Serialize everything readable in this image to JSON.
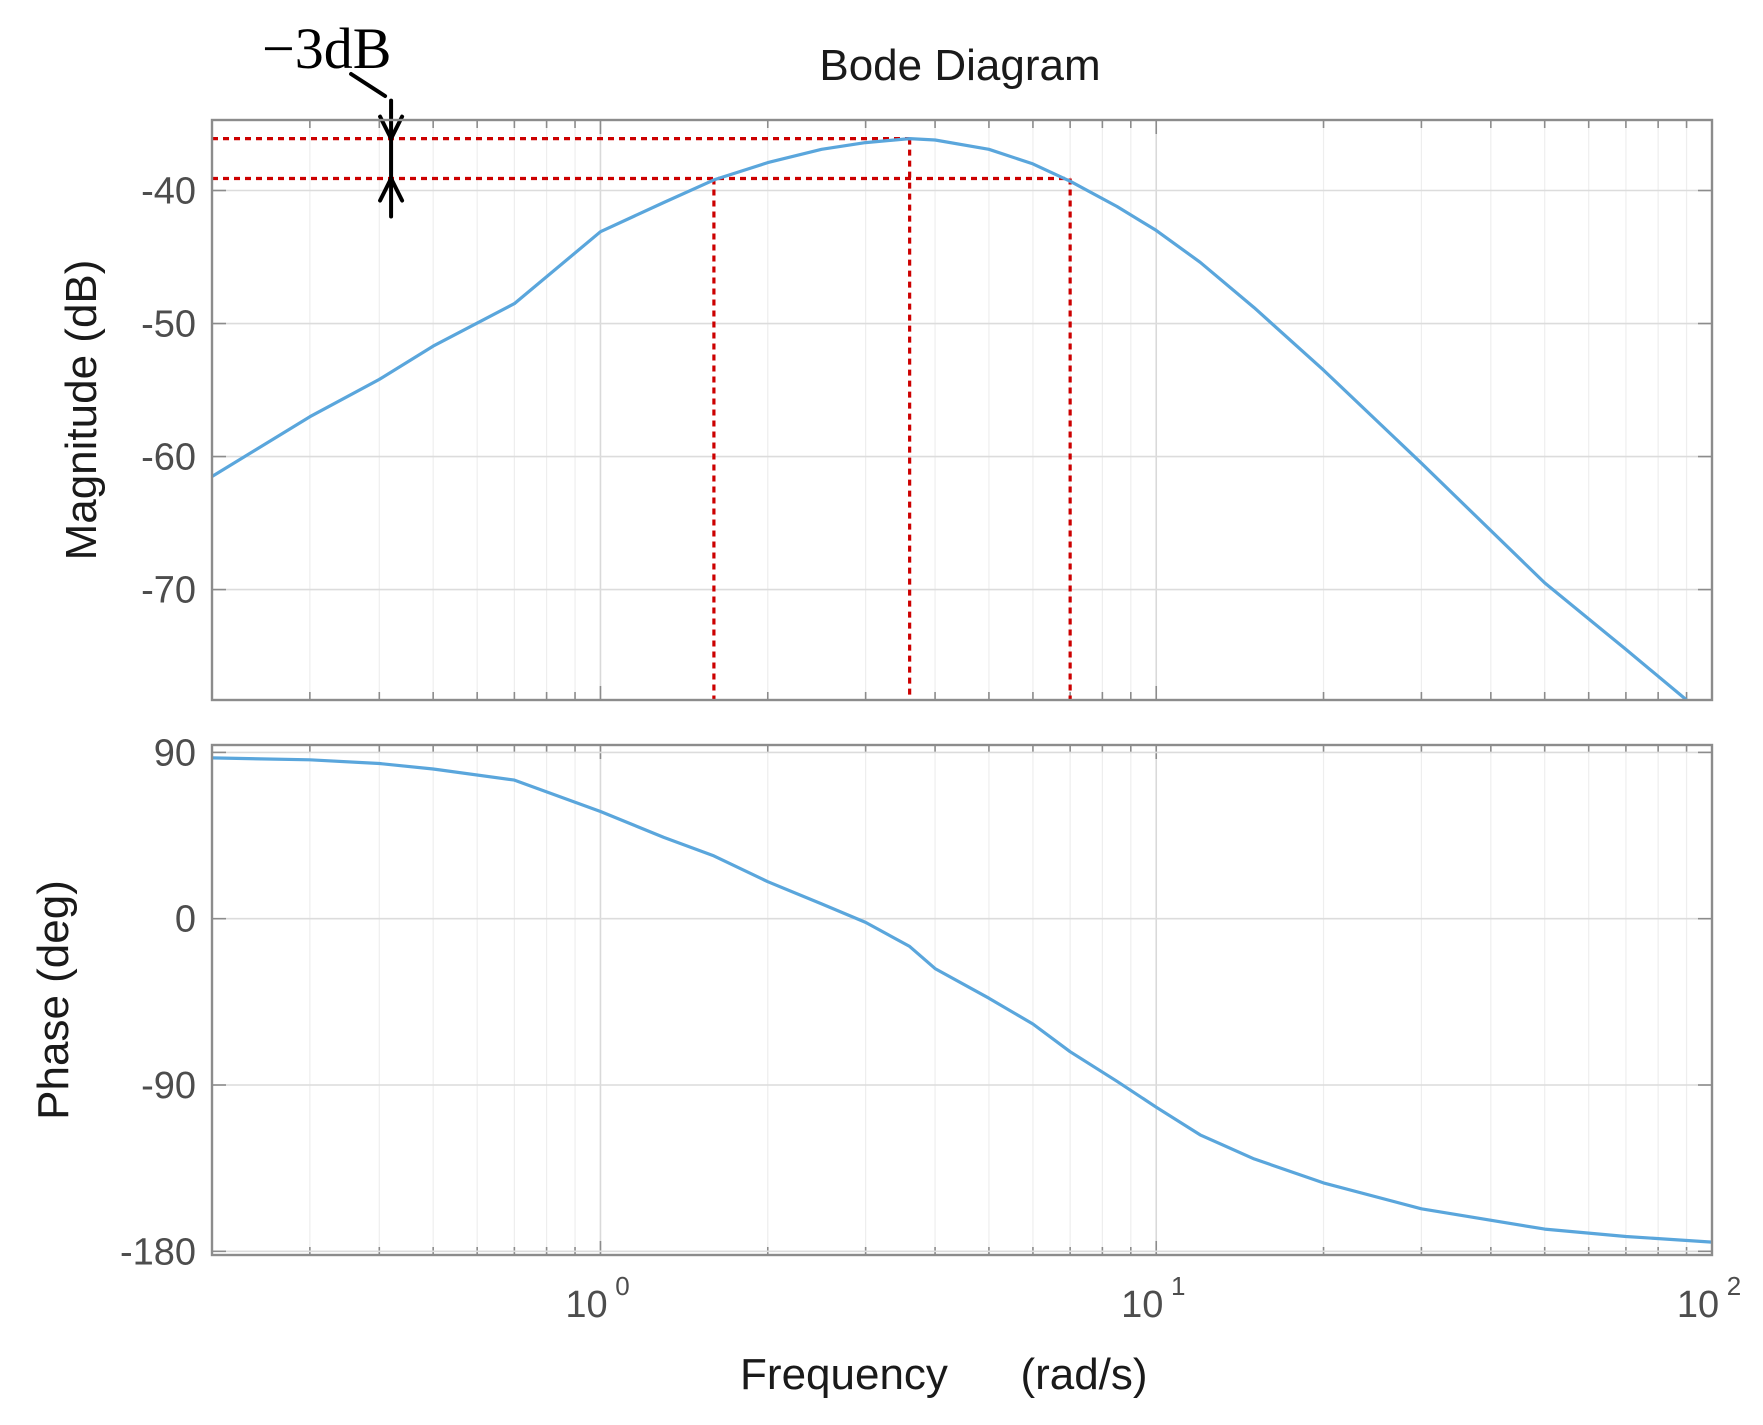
{
  "chart_data": {
    "type": "line",
    "title": "Bode Diagram",
    "xlabel_parts": [
      "Frequency",
      "(rad/s)"
    ],
    "x_scale": "log",
    "xlim": [
      0.2,
      100
    ],
    "x_ticks": [
      {
        "value": 1,
        "base": "10",
        "exp": "0"
      },
      {
        "value": 10,
        "base": "10",
        "exp": "1"
      },
      {
        "value": 100,
        "base": "10",
        "exp": "2"
      }
    ],
    "colors": {
      "curve": "#5aa6dc",
      "marker_lines": "#cc0000",
      "grid": "#e3e3e3",
      "axes": "#8c8c8c",
      "annotation": "#000000"
    },
    "panels": [
      {
        "name": "magnitude",
        "ylabel": "Magnitude (dB)",
        "ylim": [
          -78.3,
          -34.7
        ],
        "y_ticks": [
          {
            "value": -40,
            "label": "-40"
          },
          {
            "value": -50,
            "label": "-50"
          },
          {
            "value": -60,
            "label": "-60"
          },
          {
            "value": -70,
            "label": "-70"
          }
        ],
        "series": [
          {
            "name": "magnitude",
            "x": [
              0.2,
              0.3,
              0.4,
              0.5,
              0.7,
              1.0,
              1.3,
              1.6,
              2.0,
              2.5,
              3.0,
              3.6,
              4.0,
              5.0,
              6.0,
              7.0,
              8.5,
              10.0,
              12.0,
              15.0,
              20.0,
              30.0,
              50.0,
              70.0,
              90.0
            ],
            "y": [
              -61.5,
              -57.0,
              -54.2,
              -51.7,
              -48.5,
              -43.1,
              -40.9,
              -39.2,
              -37.9,
              -36.9,
              -36.4,
              -36.1,
              -36.2,
              -36.9,
              -38.0,
              -39.3,
              -41.2,
              -43.0,
              -45.4,
              -48.8,
              -53.5,
              -60.5,
              -69.5,
              -74.5,
              -78.3
            ]
          }
        ],
        "markers": {
          "peak_db": -36.1,
          "minus3db_level": -39.1,
          "frequencies": [
            1.6,
            3.6,
            7.0
          ]
        },
        "annotation": {
          "text": "−3dB",
          "at_x": 0.42
        }
      },
      {
        "name": "phase",
        "ylabel": "Phase (deg)",
        "ylim": [
          -182,
          94
        ],
        "y_ticks": [
          {
            "value": 90,
            "label": "90"
          },
          {
            "value": 0,
            "label": "0"
          },
          {
            "value": -90,
            "label": "-90"
          },
          {
            "value": -180,
            "label": "-180"
          }
        ],
        "series": [
          {
            "name": "phase",
            "x": [
              0.2,
              0.3,
              0.4,
              0.5,
              0.7,
              1.0,
              1.3,
              1.6,
              2.0,
              2.5,
              3.0,
              3.6,
              4.0,
              5.0,
              6.0,
              7.0,
              8.5,
              10.0,
              12.0,
              15.0,
              20.0,
              30.0,
              50.0,
              70.0,
              100.0
            ],
            "y": [
              87,
              86,
              84,
              81,
              75,
              58,
              44,
              34,
              20,
              8,
              -2,
              -15,
              -27,
              -43,
              -57,
              -72,
              -88,
              -102,
              -117,
              -130,
              -143,
              -157,
              -168,
              -172,
              -175
            ]
          }
        ]
      }
    ]
  }
}
